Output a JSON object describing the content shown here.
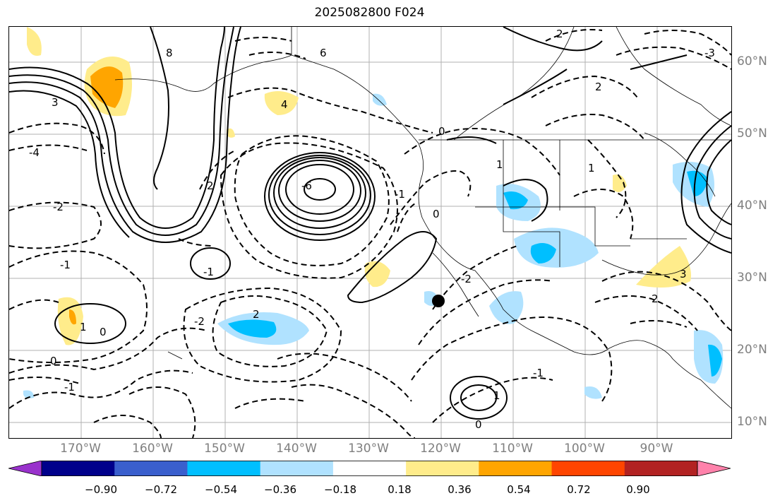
{
  "title": "2025082800 F024",
  "lon_labels": [
    "170°W",
    "160°W",
    "150°W",
    "140°W",
    "130°W",
    "120°W",
    "110°W",
    "100°W",
    "90°W"
  ],
  "lat_labels": [
    "60°N",
    "50°N",
    "40°N",
    "30°N",
    "20°N",
    "10°N"
  ],
  "colorbar": {
    "colors": [
      "#9932CC",
      "#00008B",
      "#3A5FCD",
      "#00BFFF",
      "#B0E2FF",
      "#FFFFFF",
      "#FFEC8B",
      "#FFA500",
      "#FF4500",
      "#B22222",
      "#FF82AB"
    ],
    "ticks": [
      "−0.90",
      "−0.72",
      "−0.54",
      "−0.36",
      "−0.18",
      "0.18",
      "0.36",
      "0.54",
      "0.72",
      "0.90"
    ]
  },
  "contour_labels": [
    "8",
    "6",
    "4",
    "3",
    "2",
    "2",
    "1",
    "0",
    "-1",
    "-2",
    "-3",
    "-4",
    "-6",
    "0",
    "1",
    "-1",
    "2",
    "0",
    "-1",
    "-2",
    "0",
    "-1",
    "2",
    "1",
    "-1",
    "0",
    "-2",
    "1",
    "2",
    "3"
  ],
  "marker": "surface-point"
}
